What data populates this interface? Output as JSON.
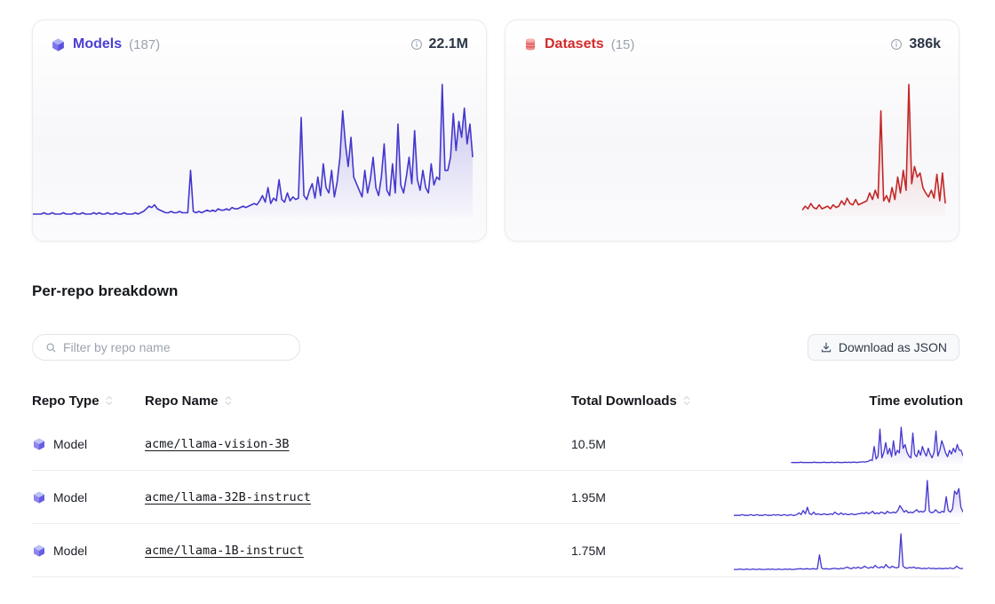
{
  "cards": [
    {
      "title": "Models",
      "count": "(187)",
      "total": "22.1M",
      "accent": "#4a3fd1",
      "line_color": "#4437cd",
      "icon": "cube-icon",
      "lead_gap": 0,
      "values": [
        2,
        2,
        2,
        2,
        3,
        2,
        2,
        3,
        2,
        2,
        2,
        3,
        2,
        2,
        2,
        3,
        2,
        2,
        3,
        2,
        2,
        2,
        3,
        2,
        3,
        2,
        2,
        3,
        2,
        2,
        3,
        2,
        2,
        3,
        2,
        2,
        2,
        3,
        2,
        3,
        4,
        6,
        8,
        7,
        9,
        6,
        5,
        4,
        3,
        3,
        4,
        3,
        3,
        4,
        3,
        3,
        3,
        35,
        4,
        3,
        4,
        3,
        4,
        5,
        4,
        5,
        4,
        6,
        5,
        5,
        6,
        5,
        7,
        6,
        6,
        7,
        8,
        7,
        8,
        9,
        10,
        9,
        12,
        16,
        11,
        22,
        10,
        14,
        12,
        28,
        13,
        11,
        18,
        12,
        15,
        13,
        14,
        75,
        16,
        13,
        20,
        25,
        14,
        30,
        16,
        40,
        22,
        18,
        35,
        15,
        26,
        45,
        80,
        55,
        38,
        60,
        30,
        25,
        20,
        15,
        35,
        18,
        28,
        45,
        22,
        16,
        30,
        55,
        20,
        16,
        40,
        18,
        70,
        24,
        18,
        30,
        45,
        25,
        65,
        28,
        20,
        35,
        22,
        18,
        40,
        24,
        30,
        28,
        100,
        35,
        35,
        45,
        78,
        50,
        72,
        60,
        82,
        55,
        70,
        45
      ]
    },
    {
      "title": "Datasets",
      "count": "(15)",
      "total": "386k",
      "accent": "#d22b2b",
      "line_color": "#c32727",
      "icon": "database-icon",
      "lead_gap": 0.675,
      "values": [
        5,
        8,
        6,
        10,
        7,
        6,
        9,
        6,
        7,
        8,
        6,
        9,
        7,
        8,
        12,
        9,
        14,
        10,
        9,
        13,
        9,
        10,
        11,
        12,
        18,
        13,
        20,
        14,
        80,
        12,
        16,
        11,
        22,
        13,
        30,
        18,
        35,
        20,
        100,
        25,
        38,
        30,
        33,
        22,
        18,
        15,
        20,
        14,
        32,
        12,
        33,
        10
      ]
    }
  ],
  "section": {
    "title": "Per-repo breakdown"
  },
  "filter": {
    "placeholder": "Filter by repo name",
    "value": ""
  },
  "download_button": {
    "label": "Download as JSON",
    "icon": "download-icon"
  },
  "table": {
    "columns": [
      {
        "label": "Repo Type",
        "sortable": true
      },
      {
        "label": "Repo Name",
        "sortable": true
      },
      {
        "label": "Total Downloads",
        "sortable": true
      },
      {
        "label": "Time evolution",
        "sortable": false
      }
    ],
    "rows": [
      {
        "type": "Model",
        "icon": "cube-icon",
        "name": "acme/llama-vision-3B",
        "downloads": "10.5M",
        "line_color": "#4437cd",
        "lead_gap": 0.25,
        "values": [
          3,
          3,
          3,
          3,
          3,
          4,
          3,
          3,
          3,
          3,
          3,
          3,
          4,
          3,
          3,
          3,
          3,
          4,
          3,
          3,
          3,
          4,
          3,
          3,
          4,
          3,
          3,
          3,
          4,
          3,
          4,
          3,
          4,
          4,
          3,
          4,
          4,
          5,
          4,
          5,
          6,
          10,
          8,
          45,
          12,
          20,
          90,
          15,
          30,
          55,
          25,
          40,
          18,
          60,
          22,
          35,
          28,
          95,
          40,
          50,
          30,
          20,
          15,
          80,
          25,
          18,
          35,
          22,
          45,
          30,
          20,
          40,
          25,
          15,
          30,
          85,
          20,
          35,
          60,
          45,
          28,
          18,
          35,
          25,
          40,
          30,
          50,
          35,
          35,
          20
        ]
      },
      {
        "type": "Model",
        "icon": "cube-icon",
        "name": "acme/llama-32B-instruct",
        "downloads": "1.95M",
        "line_color": "#4437cd",
        "lead_gap": 0,
        "values": [
          2,
          2,
          2,
          2,
          3,
          2,
          2,
          2,
          3,
          2,
          2,
          3,
          2,
          2,
          2,
          3,
          2,
          2,
          2,
          3,
          2,
          3,
          2,
          2,
          3,
          2,
          2,
          3,
          2,
          2,
          3,
          5,
          3,
          8,
          4,
          12,
          4,
          3,
          6,
          3,
          4,
          3,
          3,
          4,
          3,
          3,
          4,
          3,
          6,
          4,
          3,
          5,
          3,
          4,
          3,
          3,
          4,
          3,
          3,
          4,
          4,
          5,
          4,
          6,
          4,
          5,
          7,
          4,
          5,
          4,
          6,
          5,
          4,
          7,
          5,
          5,
          6,
          5,
          8,
          14,
          10,
          6,
          8,
          5,
          6,
          5,
          7,
          9,
          6,
          7,
          6,
          8,
          45,
          7,
          5,
          6,
          9,
          6,
          5,
          7,
          6,
          25,
          8,
          6,
          10,
          32,
          28,
          35,
          12,
          6
        ]
      },
      {
        "type": "Model",
        "icon": "cube-icon",
        "name": "acme/llama-1B-instruct",
        "downloads": "1.75M",
        "line_color": "#4437cd",
        "lead_gap": 0,
        "values": [
          2,
          2,
          2,
          3,
          2,
          2,
          3,
          2,
          2,
          3,
          2,
          2,
          3,
          2,
          2,
          2,
          3,
          2,
          3,
          2,
          2,
          3,
          2,
          2,
          3,
          2,
          3,
          2,
          2,
          3,
          3,
          4,
          3,
          3,
          4,
          3,
          3,
          4,
          3,
          3,
          38,
          5,
          3,
          4,
          3,
          3,
          4,
          5,
          4,
          3,
          5,
          4,
          6,
          8,
          5,
          4,
          7,
          5,
          8,
          5,
          6,
          10,
          7,
          5,
          8,
          6,
          12,
          7,
          6,
          9,
          6,
          14,
          8,
          6,
          10,
          7,
          6,
          8,
          90,
          10,
          6,
          5,
          7,
          6,
          8,
          5,
          6,
          5,
          4,
          5,
          4,
          6,
          4,
          5,
          4,
          4,
          5,
          4,
          4,
          5,
          4,
          6,
          4,
          5,
          10,
          6,
          4,
          5
        ]
      }
    ]
  }
}
